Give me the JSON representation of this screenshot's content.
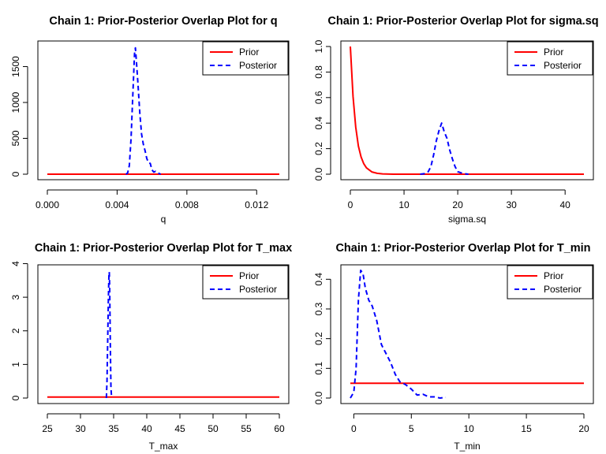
{
  "figure": {
    "legend_labels": [
      "Prior",
      "Posterior"
    ],
    "colors": {
      "prior": "#ff0000",
      "posterior": "#0000ff"
    }
  },
  "chart_data": [
    {
      "type": "line",
      "title": "Chain 1: Prior-Posterior Overlap Plot for q",
      "xlabel": "q",
      "ylabel": "",
      "xlim": [
        0.0,
        0.0133
      ],
      "ylim": [
        0,
        1780
      ],
      "xticks": [
        0.0,
        0.004,
        0.008,
        0.012
      ],
      "xtick_labels": [
        "0.000",
        "0.004",
        "0.008",
        "0.012"
      ],
      "yticks": [
        0,
        500,
        1000,
        1500
      ],
      "ytick_labels": [
        "0",
        "500",
        "1000",
        "1500"
      ],
      "legend": "top-right",
      "series": [
        {
          "name": "Prior",
          "style": "solid",
          "color": "#ff0000",
          "x": [
            0.0,
            0.0133
          ],
          "y": [
            0,
            0
          ]
        },
        {
          "name": "Posterior",
          "style": "dashed",
          "color": "#0000ff",
          "x": [
            0.0045,
            0.0046,
            0.0047,
            0.0048,
            0.0049,
            0.005,
            0.00505,
            0.0051,
            0.0052,
            0.0053,
            0.0054,
            0.0055,
            0.0056,
            0.0057,
            0.0058,
            0.0059,
            0.006,
            0.0061,
            0.0062,
            0.0063,
            0.0064,
            0.0065
          ],
          "y": [
            0,
            15,
            120,
            500,
            1100,
            1680,
            1760,
            1600,
            1250,
            850,
            560,
            420,
            330,
            220,
            160,
            150,
            60,
            30,
            40,
            20,
            10,
            0
          ]
        }
      ]
    },
    {
      "type": "line",
      "title": "Chain 1: Prior-Posterior Overlap Plot for sigma.sq",
      "xlabel": "sigma.sq",
      "ylabel": "",
      "xlim": [
        0,
        43.5
      ],
      "ylim": [
        0,
        1.0
      ],
      "xticks": [
        0,
        10,
        20,
        30,
        40
      ],
      "xtick_labels": [
        "0",
        "10",
        "20",
        "30",
        "40"
      ],
      "yticks": [
        0.0,
        0.2,
        0.4,
        0.6,
        0.8,
        1.0
      ],
      "ytick_labels": [
        "0.0",
        "0.2",
        "0.4",
        "0.6",
        "0.8",
        "1.0"
      ],
      "legend": "top-right",
      "series": [
        {
          "name": "Prior",
          "style": "solid",
          "color": "#ff0000",
          "x": [
            0,
            0.5,
            1,
            1.5,
            2,
            2.5,
            3,
            4,
            5,
            6,
            8,
            10,
            15,
            20,
            30,
            43.5
          ],
          "y": [
            1.0,
            0.61,
            0.37,
            0.22,
            0.135,
            0.082,
            0.05,
            0.018,
            0.007,
            0.0025,
            0.0003,
            5e-05,
            0,
            0,
            0,
            0
          ]
        },
        {
          "name": "Posterior",
          "style": "dashed",
          "color": "#0000ff",
          "x": [
            13,
            14,
            14.5,
            15,
            15.5,
            16,
            16.5,
            17,
            17.5,
            18,
            18.5,
            19,
            19.5,
            20,
            21,
            22
          ],
          "y": [
            0,
            0.005,
            0.02,
            0.06,
            0.15,
            0.26,
            0.34,
            0.4,
            0.33,
            0.28,
            0.19,
            0.12,
            0.06,
            0.02,
            0.005,
            0
          ]
        }
      ]
    },
    {
      "type": "line",
      "title": "Chain 1: Prior-Posterior Overlap Plot for T_max",
      "xlabel": "T_max",
      "ylabel": "",
      "xlim": [
        25,
        60
      ],
      "ylim": [
        0,
        3.8
      ],
      "xticks": [
        25,
        30,
        35,
        40,
        45,
        50,
        55,
        60
      ],
      "xtick_labels": [
        "25",
        "30",
        "35",
        "40",
        "45",
        "50",
        "55",
        "60"
      ],
      "yticks": [
        0,
        1,
        2,
        3,
        4
      ],
      "ytick_labels": [
        "0",
        "1",
        "2",
        "3",
        "4"
      ],
      "legend": "top-right",
      "series": [
        {
          "name": "Prior",
          "style": "solid",
          "color": "#ff0000",
          "x": [
            25,
            60
          ],
          "y": [
            0.028,
            0.028
          ]
        },
        {
          "name": "Posterior",
          "style": "dashed",
          "color": "#0000ff",
          "x": [
            33.9,
            34.0,
            34.1,
            34.2,
            34.3,
            34.35,
            34.4,
            34.5,
            34.6,
            34.7
          ],
          "y": [
            0,
            0.5,
            1.6,
            2.9,
            3.7,
            3.75,
            3.3,
            1.6,
            0.3,
            0
          ]
        }
      ]
    },
    {
      "type": "line",
      "title": "Chain 1: Prior-Posterior Overlap Plot for T_min",
      "xlabel": "T_min",
      "ylabel": "",
      "xlim": [
        -0.3,
        20
      ],
      "ylim": [
        0,
        0.43
      ],
      "xticks": [
        0,
        5,
        10,
        15,
        20
      ],
      "xtick_labels": [
        "0",
        "5",
        "10",
        "15",
        "20"
      ],
      "yticks": [
        0.0,
        0.1,
        0.2,
        0.3,
        0.4
      ],
      "ytick_labels": [
        "0.0",
        "0.1",
        "0.2",
        "0.3",
        "0.4"
      ],
      "legend": "top-right",
      "series": [
        {
          "name": "Prior",
          "style": "solid",
          "color": "#ff0000",
          "x": [
            -0.3,
            20
          ],
          "y": [
            0.05,
            0.05
          ]
        },
        {
          "name": "Posterior",
          "style": "dashed",
          "color": "#0000ff",
          "x": [
            -0.3,
            0,
            0.2,
            0.4,
            0.6,
            0.8,
            1.0,
            1.3,
            1.6,
            2.0,
            2.4,
            2.8,
            3.2,
            3.6,
            4.0,
            4.5,
            5.0,
            5.5,
            6.0,
            6.5,
            7.0,
            7.5,
            8.0
          ],
          "y": [
            0.0,
            0.02,
            0.1,
            0.33,
            0.43,
            0.42,
            0.37,
            0.33,
            0.31,
            0.26,
            0.18,
            0.15,
            0.12,
            0.08,
            0.055,
            0.045,
            0.03,
            0.01,
            0.013,
            0.004,
            0.004,
            0.0,
            0.002
          ]
        }
      ]
    }
  ]
}
